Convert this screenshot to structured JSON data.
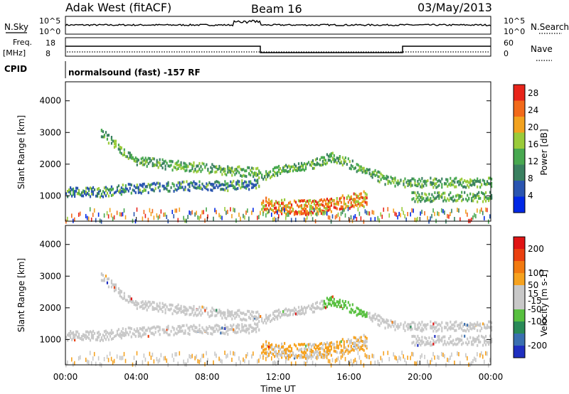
{
  "header": {
    "station": "Adak West (fitACF)",
    "beam": "Beam 16",
    "date": "03/May/2013"
  },
  "strips": {
    "nsky_label": "N.Sky",
    "nsky_ticks": [
      "10^5",
      "10^0"
    ],
    "nsearch_label": "N.Search",
    "nsearch_ticks": [
      "10^5",
      "10^0"
    ],
    "freq_label_1": "Freq.",
    "freq_label_2": "[MHz]",
    "freq_ticks": [
      "18",
      "8"
    ],
    "nave_label": "Nave",
    "nave_ticks": [
      "60",
      "0"
    ],
    "cpid_label": "CPID",
    "cpid_text": "normalsound (fast) -157 RF"
  },
  "colors": {
    "power": [
      "#0028e6",
      "#2a55b0",
      "#3a8060",
      "#48a850",
      "#9acb3a",
      "#f2a21f",
      "#f26a1a",
      "#e8241a"
    ],
    "velocity": [
      "#1f2fc0",
      "#3a6fb0",
      "#2a8a58",
      "#58c040",
      "#c8c8c8",
      "#c8c8c8",
      "#f6a21f",
      "#f27a10",
      "#ea4010",
      "#e01414"
    ]
  },
  "chart_data": [
    {
      "type": "heatmap",
      "ylabel": "Slant Range [km]",
      "ylim": [
        200,
        4600
      ],
      "y_ticks": [
        "1000",
        "2000",
        "3000",
        "4000"
      ],
      "x_ticks": [
        "00:00",
        "04:00",
        "08:00",
        "12:00",
        "16:00",
        "20:00",
        "00:00"
      ],
      "colorbar": {
        "label": "Power [dB]",
        "ticks": [
          "28",
          "24",
          "20",
          "16",
          "12",
          "8",
          "4"
        ],
        "range": [
          0,
          30
        ]
      },
      "echo_bands": [
        {
          "name": "",
          "t": [
            0.0,
            2.0,
            3.3,
            7.0,
            9.0,
            10.9
          ],
          "range_km": [
            1200,
            1200,
            1300,
            1400,
            1400,
            1450
          ]
        },
        {
          "name": "",
          "t": [
            2.0,
            3.0,
            4.0,
            6.0,
            8.0,
            11.0
          ],
          "range_km": [
            3100,
            2600,
            2200,
            2050,
            1950,
            1800
          ]
        },
        {
          "name": "",
          "t": [
            11.0,
            12.0,
            13.5,
            15.0,
            16.0,
            18.0,
            19.0,
            24.0
          ],
          "range_km": [
            1700,
            1900,
            2000,
            2300,
            2100,
            1600,
            1500,
            1500
          ]
        },
        {
          "name": "",
          "t": [
            11.0,
            13.0,
            14.5,
            16.0,
            17.0
          ],
          "range_km": [
            800,
            700,
            750,
            900,
            1000
          ]
        },
        {
          "name": "",
          "t": [
            19.5,
            24.0
          ],
          "range_km": [
            1050,
            1050
          ]
        }
      ]
    },
    {
      "type": "heatmap",
      "ylabel": "Slant Range [km]",
      "ylim": [
        200,
        4600
      ],
      "y_ticks": [
        "1000",
        "2000",
        "3000",
        "4000"
      ],
      "x_ticks": [
        "00:00",
        "04:00",
        "08:00",
        "12:00",
        "16:00",
        "20:00",
        "00:00"
      ],
      "xlabel": "Time UT",
      "colorbar": {
        "label": "Velocity [m s-1]",
        "ticks": [
          "200",
          "100",
          "50",
          "15",
          "-15",
          "-50",
          "-100",
          "-200"
        ],
        "range": [
          -250,
          250
        ]
      }
    }
  ]
}
